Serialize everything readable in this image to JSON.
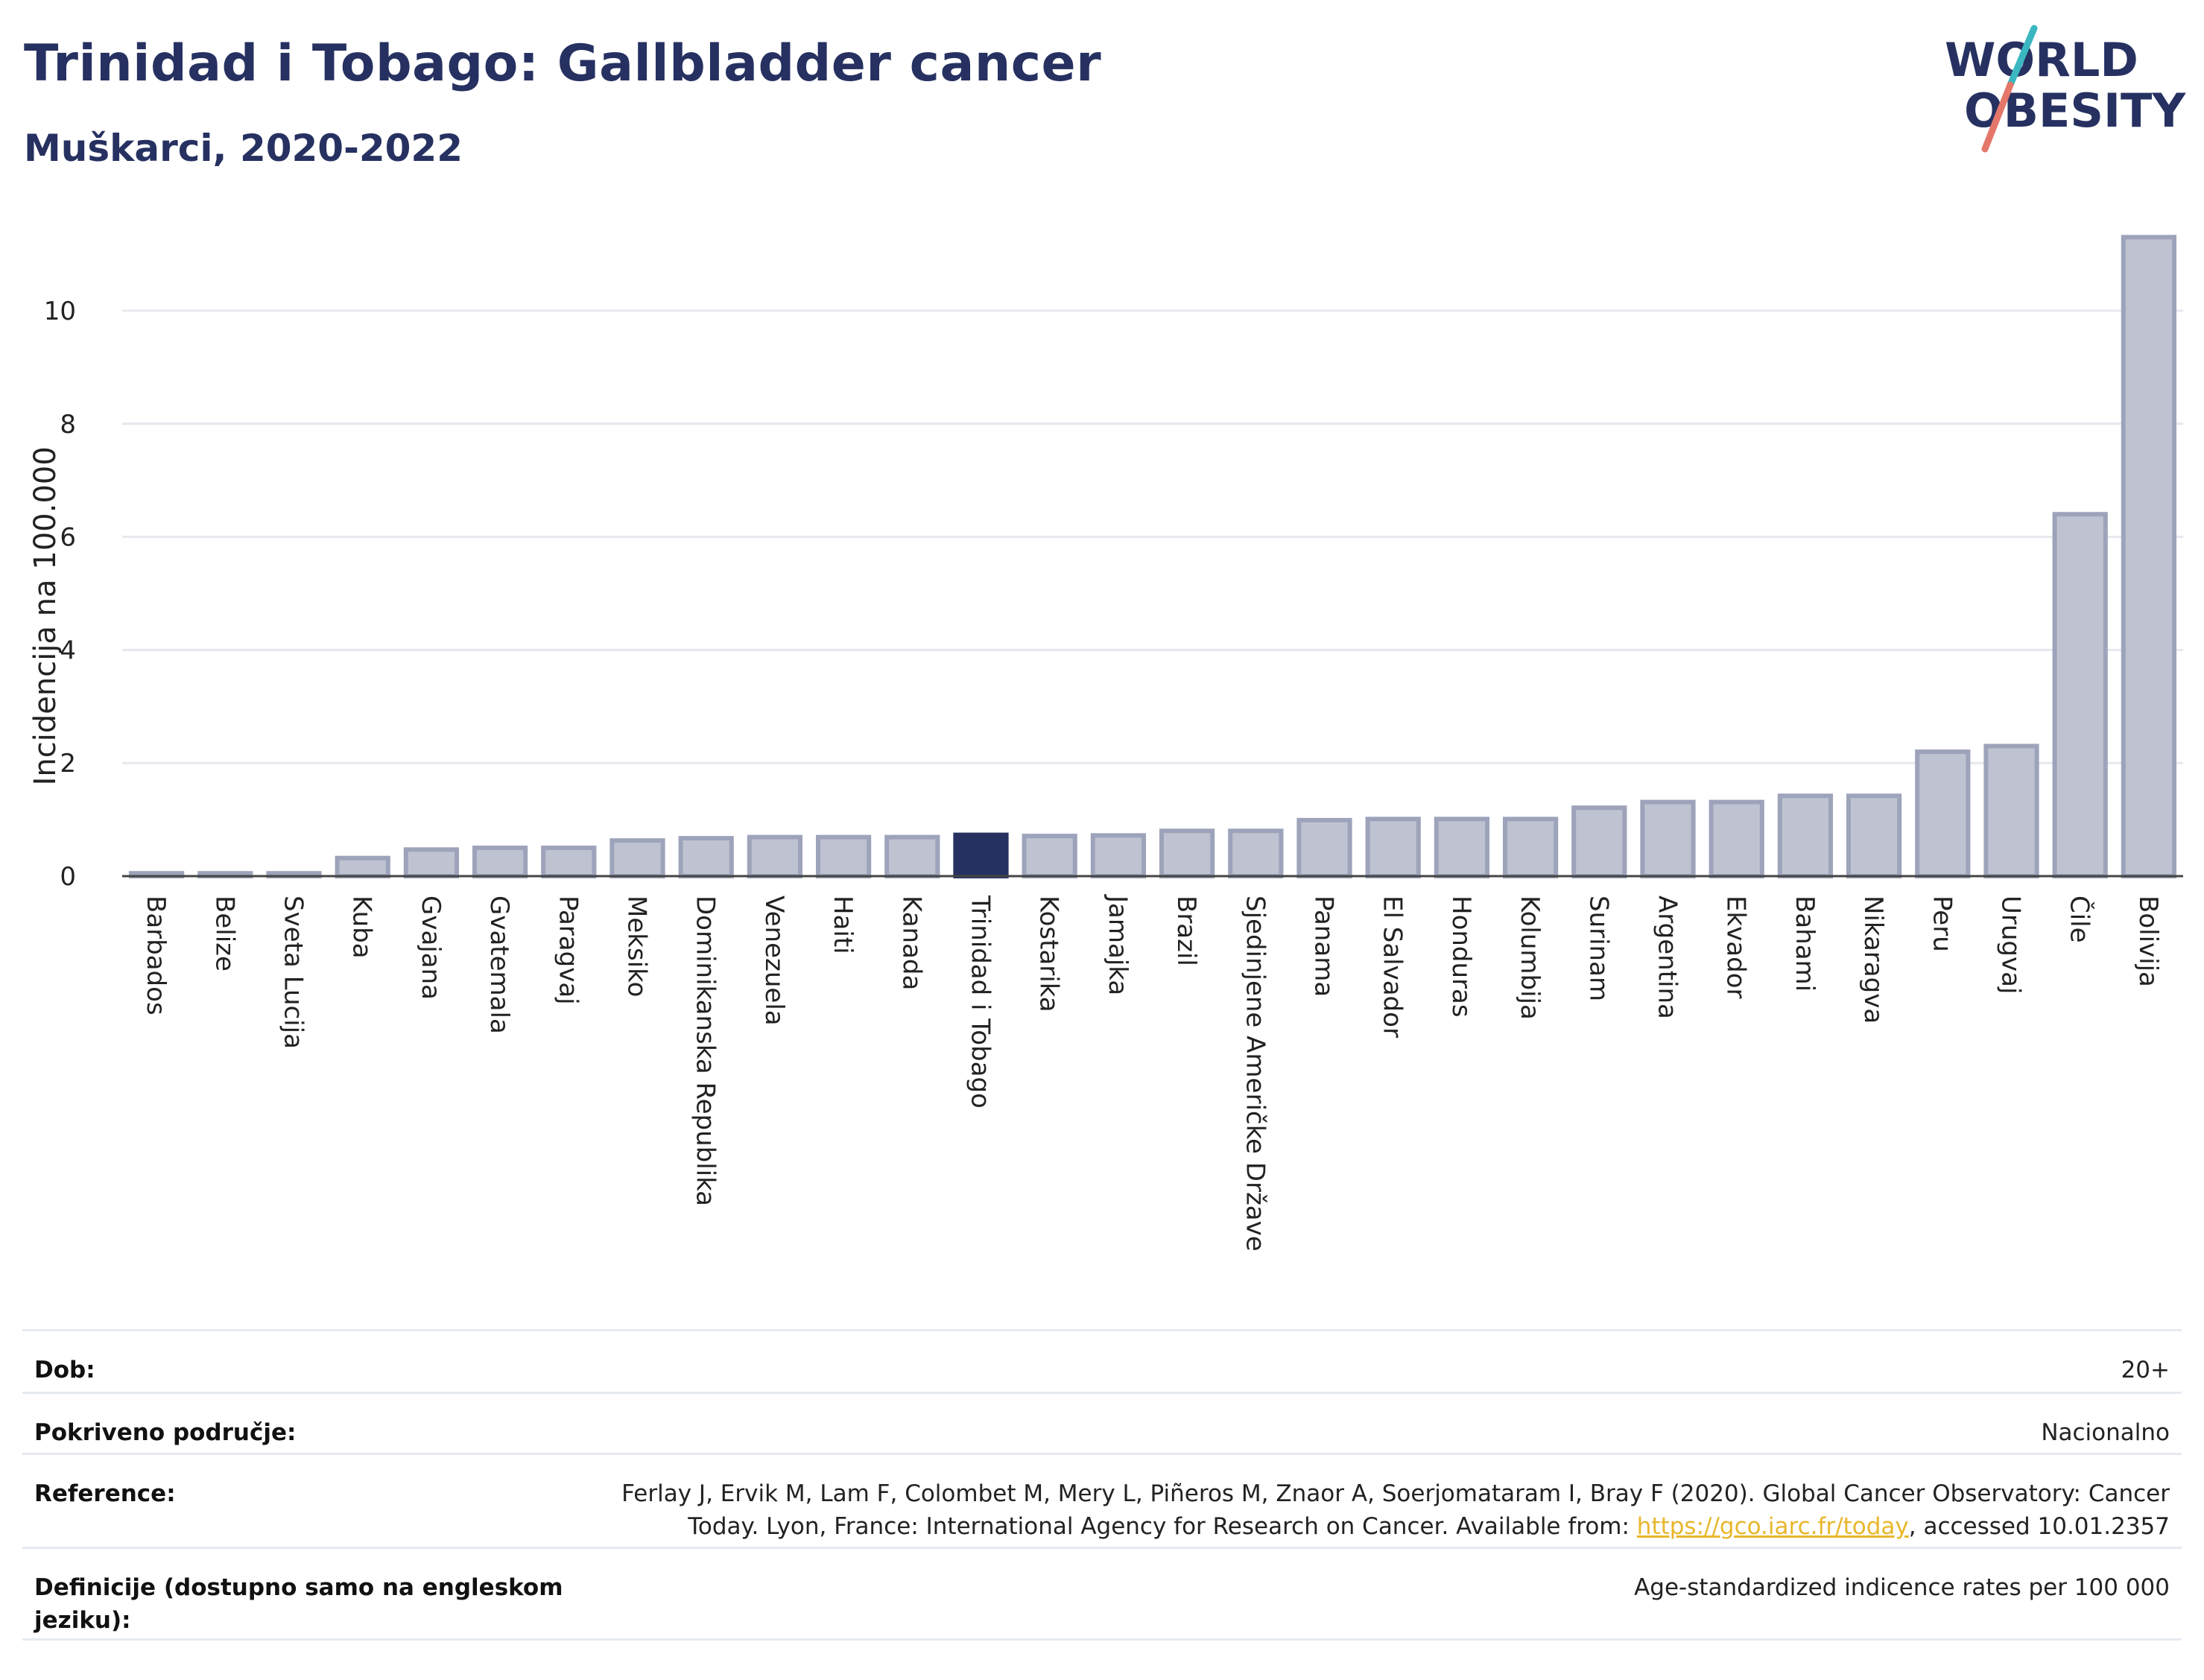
{
  "title": "Trinidad i Tobago: Gallbladder cancer",
  "subtitle": "Muškarci, 2020-2022",
  "logo": {
    "line1": "WORLD",
    "line2": "OBESITY"
  },
  "colors": {
    "highlight": "#263161",
    "bar_fill": "#bfc3d1",
    "bar_stroke": "#9da3ba",
    "accent_teal": "#3bb7c1",
    "accent_coral": "#e4776a"
  },
  "chart_data": {
    "type": "bar",
    "ylabel": "Incidencija na 100.000",
    "ylim": [
      0,
      11.5
    ],
    "yticks": [
      0,
      2,
      4,
      6,
      8,
      10
    ],
    "grid": true,
    "highlight": "Trinidad i Tobago",
    "categories": [
      "Barbados",
      "Belize",
      "Sveta Lucija",
      "Kuba",
      "Gvajana",
      "Gvatemala",
      "Paragvaj",
      "Meksiko",
      "Dominikanska Republika",
      "Venezuela",
      "Haiti",
      "Kanada",
      "Trinidad i Tobago",
      "Kostarika",
      "Jamajka",
      "Brazil",
      "Sjedinjene Američke Države",
      "Panama",
      "El Salvador",
      "Honduras",
      "Kolumbija",
      "Surinam",
      "Argentina",
      "Ekvador",
      "Bahami",
      "Nikaragva",
      "Peru",
      "Urugvaj",
      "Čile",
      "Bolivija"
    ],
    "values": [
      0.05,
      0.05,
      0.05,
      0.32,
      0.47,
      0.5,
      0.5,
      0.63,
      0.67,
      0.69,
      0.69,
      0.69,
      0.73,
      0.71,
      0.72,
      0.8,
      0.8,
      0.99,
      1.01,
      1.01,
      1.01,
      1.21,
      1.31,
      1.31,
      1.42,
      1.42,
      2.2,
      2.3,
      6.4,
      11.3
    ]
  },
  "info": {
    "rows": [
      {
        "label": "Dob:",
        "value": "20+"
      },
      {
        "label": "Pokriveno područje:",
        "value": "Nacionalno"
      },
      {
        "label": "Reference:",
        "value_pre": "Ferlay J, Ervik M, Lam F, Colombet M, Mery L, Piñeros M, Znaor A, Soerjomataram I, Bray F (2020). Global Cancer Observatory: Cancer Today. Lyon, France: International Agency for Research on Cancer. Available from: ",
        "link": "https://gco.iarc.fr/today",
        "value_post": ", accessed 10.01.2357"
      },
      {
        "label": "Definicije (dostupno samo na engleskom jeziku):",
        "value": "Age-standardized indicence rates per 100 000"
      }
    ]
  }
}
